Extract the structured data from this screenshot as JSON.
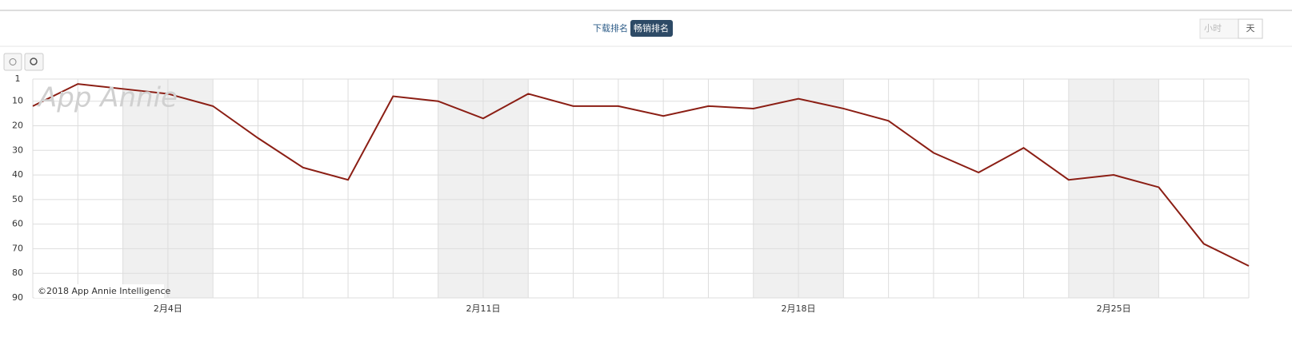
{
  "ui": {
    "tabs": [
      "下载排名",
      "畅销排名"
    ],
    "granularity": [
      "小时",
      "天"
    ],
    "watermark": "App Annie",
    "credit": "©2018 App Annie Intelligence"
  },
  "chart_data": {
    "type": "line",
    "y_reversed": true,
    "grid": true,
    "categories": [
      null,
      null,
      null,
      "2月4日",
      null,
      null,
      null,
      null,
      null,
      null,
      "2月11日",
      null,
      null,
      null,
      null,
      null,
      null,
      "2月18日",
      null,
      null,
      null,
      null,
      null,
      null,
      "2月25日",
      null,
      null,
      null
    ],
    "series": [
      {
        "name": "畅销排名",
        "color": "#8b1e14",
        "values": [
          12,
          3,
          5,
          7,
          12,
          25,
          37,
          42,
          8,
          10,
          17,
          7,
          12,
          12,
          16,
          12,
          13,
          9,
          13,
          18,
          31,
          39,
          29,
          42,
          40,
          45,
          68,
          77
        ]
      }
    ],
    "ylim": [
      1,
      90
    ],
    "yticks": [
      1,
      10,
      20,
      30,
      40,
      50,
      60,
      70,
      80,
      90
    ]
  }
}
